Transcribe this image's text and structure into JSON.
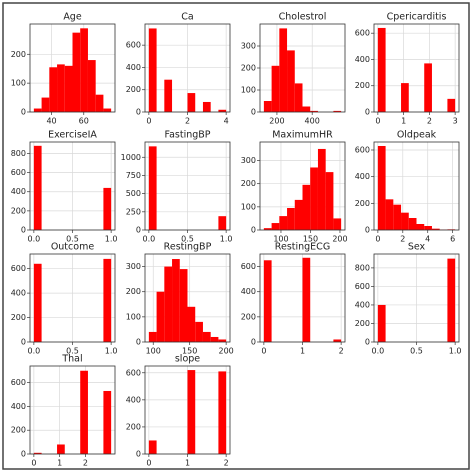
{
  "chart_data": [
    {
      "type": "histogram",
      "title": "Age",
      "color": "#ff0000",
      "grid": true,
      "bins": [
        29,
        33.8,
        38.6,
        43.4,
        48.2,
        53,
        57.8,
        62.6,
        67.4,
        72.2,
        77
      ],
      "values": [
        12,
        50,
        155,
        165,
        160,
        275,
        290,
        180,
        60,
        12
      ],
      "xlim": [
        26.6,
        79.4
      ],
      "ylim": [
        0,
        305
      ],
      "xticks": [
        40,
        60
      ],
      "yticks": [
        0,
        100,
        200
      ]
    },
    {
      "type": "histogram",
      "title": "Ca",
      "color": "#ff0000",
      "grid": true,
      "bins": [
        0,
        0.4,
        0.8,
        1.2,
        1.6,
        2,
        2.4,
        2.8,
        3.2,
        3.6,
        4
      ],
      "values": [
        750,
        0,
        290,
        0,
        0,
        170,
        0,
        90,
        0,
        20
      ],
      "xlim": [
        -0.2,
        4.2
      ],
      "ylim": [
        0,
        790
      ],
      "xticks": [
        0,
        2,
        4
      ],
      "yticks": [
        0,
        200,
        400,
        600
      ]
    },
    {
      "type": "histogram",
      "title": "Cholestrol",
      "color": "#ff0000",
      "grid": true,
      "bins": [
        126,
        169.8,
        213.6,
        257.4,
        301.2,
        345,
        388.8,
        432.6,
        476.4,
        520.2,
        564
      ],
      "values": [
        50,
        210,
        380,
        280,
        130,
        25,
        5,
        0,
        0,
        5
      ],
      "xlim": [
        104,
        586
      ],
      "ylim": [
        0,
        400
      ],
      "xticks": [
        200,
        400
      ],
      "yticks": [
        0,
        100,
        200,
        300
      ]
    },
    {
      "type": "histogram",
      "title": "Cpericarditis",
      "color": "#ff0000",
      "grid": true,
      "bins": [
        0,
        0.3,
        0.6,
        0.9,
        1.2,
        1.5,
        1.8,
        2.1,
        2.4,
        2.7,
        3
      ],
      "values": [
        640,
        0,
        0,
        220,
        0,
        0,
        370,
        0,
        0,
        100
      ],
      "xlim": [
        -0.15,
        3.15
      ],
      "ylim": [
        0,
        670
      ],
      "xticks": [
        0,
        1,
        2,
        3
      ],
      "yticks": [
        0,
        200,
        400,
        600
      ]
    },
    {
      "type": "histogram",
      "title": "ExerciseIA",
      "color": "#ff0000",
      "grid": true,
      "bins": [
        0,
        0.1,
        0.2,
        0.3,
        0.4,
        0.5,
        0.6,
        0.7,
        0.8,
        0.9,
        1
      ],
      "values": [
        880,
        0,
        0,
        0,
        0,
        0,
        0,
        0,
        0,
        440
      ],
      "xlim": [
        -0.05,
        1.05
      ],
      "ylim": [
        0,
        920
      ],
      "xticks": [
        {
          "value": 0,
          "label": "0.0"
        },
        0.5,
        {
          "value": 1,
          "label": "1.0"
        }
      ],
      "yticks": [
        0,
        200,
        400,
        600,
        800
      ]
    },
    {
      "type": "histogram",
      "title": "FastingBP",
      "color": "#ff0000",
      "grid": true,
      "bins": [
        0,
        0.1,
        0.2,
        0.3,
        0.4,
        0.5,
        0.6,
        0.7,
        0.8,
        0.9,
        1
      ],
      "values": [
        1150,
        0,
        0,
        0,
        0,
        0,
        0,
        0,
        0,
        190
      ],
      "xlim": [
        -0.05,
        1.05
      ],
      "ylim": [
        0,
        1210
      ],
      "xticks": [
        {
          "value": 0,
          "label": "0.0"
        },
        0.5,
        {
          "value": 1,
          "label": "1.0"
        }
      ],
      "yticks": [
        0,
        250,
        500,
        750,
        1000
      ]
    },
    {
      "type": "histogram",
      "title": "MaximumHR",
      "color": "#ff0000",
      "grid": true,
      "bins": [
        71,
        84.1,
        97.2,
        110.3,
        123.4,
        136.5,
        149.6,
        162.7,
        175.8,
        188.9,
        202
      ],
      "values": [
        8,
        30,
        60,
        95,
        130,
        195,
        270,
        350,
        250,
        50
      ],
      "xlim": [
        64.45,
        208.55
      ],
      "ylim": [
        0,
        380
      ],
      "xticks": [
        100,
        150,
        200
      ],
      "yticks": [
        0,
        100,
        200,
        300
      ]
    },
    {
      "type": "histogram",
      "title": "Oldpeak",
      "color": "#ff0000",
      "grid": true,
      "bins": [
        0,
        0.62,
        1.24,
        1.86,
        2.48,
        3.1,
        3.72,
        4.34,
        4.96,
        5.58,
        6.2
      ],
      "values": [
        630,
        230,
        190,
        130,
        90,
        45,
        30,
        10,
        3,
        5
      ],
      "xlim": [
        -0.31,
        6.51
      ],
      "ylim": [
        0,
        660
      ],
      "xticks": [
        0,
        2,
        4,
        6
      ],
      "yticks": [
        0,
        200,
        400,
        600
      ]
    },
    {
      "type": "histogram",
      "title": "Outcome",
      "color": "#ff0000",
      "grid": true,
      "bins": [
        0,
        0.1,
        0.2,
        0.3,
        0.4,
        0.5,
        0.6,
        0.7,
        0.8,
        0.9,
        1
      ],
      "values": [
        640,
        0,
        0,
        0,
        0,
        0,
        0,
        0,
        0,
        680
      ],
      "xlim": [
        -0.05,
        1.05
      ],
      "ylim": [
        0,
        720
      ],
      "xticks": [
        {
          "value": 0,
          "label": "0.0"
        },
        0.5,
        {
          "value": 1,
          "label": "1.0"
        }
      ],
      "yticks": [
        0,
        200,
        400,
        600
      ]
    },
    {
      "type": "histogram",
      "title": "RestingBP",
      "color": "#ff0000",
      "grid": true,
      "bins": [
        94,
        104.6,
        115.2,
        125.8,
        136.4,
        147,
        157.6,
        168.2,
        178.8,
        189.4,
        200
      ],
      "values": [
        40,
        200,
        300,
        330,
        290,
        140,
        80,
        40,
        20,
        10
      ],
      "xlim": [
        88.7,
        205.3
      ],
      "ylim": [
        0,
        350
      ],
      "xticks": [
        100,
        150,
        200
      ],
      "yticks": [
        0,
        100,
        200,
        300
      ]
    },
    {
      "type": "histogram",
      "title": "RestingECG",
      "color": "#ff0000",
      "grid": true,
      "bins": [
        0,
        0.2,
        0.4,
        0.6,
        0.8,
        1,
        1.2,
        1.4,
        1.6,
        1.8,
        2
      ],
      "values": [
        650,
        0,
        0,
        0,
        0,
        670,
        0,
        0,
        0,
        20
      ],
      "xlim": [
        -0.1,
        2.1
      ],
      "ylim": [
        0,
        700
      ],
      "xticks": [
        0,
        1,
        2
      ],
      "yticks": [
        0,
        200,
        400,
        600
      ]
    },
    {
      "type": "histogram",
      "title": "Sex",
      "color": "#ff0000",
      "grid": true,
      "bins": [
        0,
        0.1,
        0.2,
        0.3,
        0.4,
        0.5,
        0.6,
        0.7,
        0.8,
        0.9,
        1
      ],
      "values": [
        400,
        0,
        0,
        0,
        0,
        0,
        0,
        0,
        0,
        900
      ],
      "xlim": [
        -0.05,
        1.05
      ],
      "ylim": [
        0,
        950
      ],
      "xticks": [
        {
          "value": 0,
          "label": "0.0"
        },
        0.5,
        {
          "value": 1,
          "label": "1.0"
        }
      ],
      "yticks": [
        0,
        200,
        400,
        600,
        800
      ]
    },
    {
      "type": "histogram",
      "title": "Thal",
      "color": "#ff0000",
      "grid": true,
      "bins": [
        0,
        0.3,
        0.6,
        0.9,
        1.2,
        1.5,
        1.8,
        2.1,
        2.4,
        2.7,
        3
      ],
      "values": [
        10,
        0,
        0,
        80,
        0,
        0,
        700,
        0,
        0,
        530
      ],
      "xlim": [
        -0.15,
        3.15
      ],
      "ylim": [
        0,
        740
      ],
      "xticks": [
        0,
        1,
        2
      ],
      "yticks": [
        0,
        200,
        400,
        600
      ]
    },
    {
      "type": "histogram",
      "title": "slope",
      "color": "#ff0000",
      "grid": true,
      "bins": [
        0,
        0.2,
        0.4,
        0.6,
        0.8,
        1,
        1.2,
        1.4,
        1.6,
        1.8,
        2
      ],
      "values": [
        100,
        0,
        0,
        0,
        0,
        620,
        0,
        0,
        0,
        610
      ],
      "xlim": [
        -0.1,
        2.1
      ],
      "ylim": [
        0,
        650
      ],
      "xticks": [
        0,
        1,
        2
      ],
      "yticks": [
        0,
        200,
        400,
        600
      ]
    }
  ]
}
